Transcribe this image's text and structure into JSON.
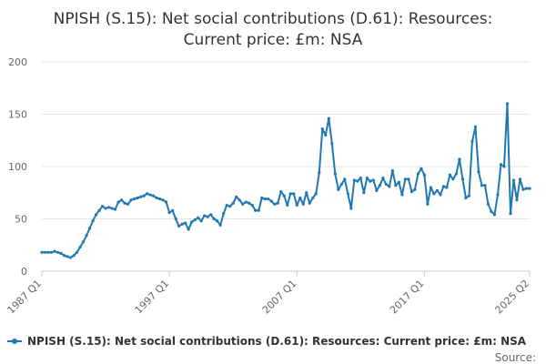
{
  "chart_data": {
    "type": "line",
    "title_line1": "NPISH (S.15): Net social contributions (D.61): Resources:",
    "title_line2": "Current price: £m: NSA",
    "xlabel": "",
    "ylabel": "",
    "ylim": [
      0,
      200
    ],
    "y_ticks": [
      "0",
      "50",
      "100",
      "150",
      "200"
    ],
    "x_tick_labels": [
      "1987 Q1",
      "1997 Q1",
      "2007 Q1",
      "2017 Q1",
      "2025 Q2"
    ],
    "x_tick_positions": [
      1987.0,
      1997.0,
      2007.0,
      2017.0,
      2025.25
    ],
    "xlim": [
      1987.0,
      2025.25
    ],
    "grid": "horizontal",
    "legend_position": "bottom",
    "legend": "NPISH (S.15): Net social contributions (D.61): Resources: Current price: £m: NSA",
    "source_label": "Source:",
    "color": "#1f78b4",
    "series": [
      {
        "name": "NPISH (S.15): Net social contributions (D.61): Resources: Current price: £m: NSA",
        "points": [
          [
            1987.0,
            18
          ],
          [
            1987.25,
            18
          ],
          [
            1987.5,
            18
          ],
          [
            1987.75,
            18
          ],
          [
            1988.0,
            19
          ],
          [
            1988.25,
            18
          ],
          [
            1988.5,
            17
          ],
          [
            1988.75,
            15
          ],
          [
            1989.0,
            14
          ],
          [
            1989.25,
            13
          ],
          [
            1989.5,
            15
          ],
          [
            1989.75,
            18
          ],
          [
            1990.0,
            23
          ],
          [
            1990.25,
            28
          ],
          [
            1990.5,
            34
          ],
          [
            1990.75,
            41
          ],
          [
            1991.0,
            48
          ],
          [
            1991.25,
            54
          ],
          [
            1991.5,
            58
          ],
          [
            1991.75,
            62
          ],
          [
            1992.0,
            60
          ],
          [
            1992.25,
            61
          ],
          [
            1992.5,
            60
          ],
          [
            1992.75,
            59
          ],
          [
            1993.0,
            66
          ],
          [
            1993.25,
            68
          ],
          [
            1993.5,
            65
          ],
          [
            1993.75,
            64
          ],
          [
            1994.0,
            68
          ],
          [
            1994.25,
            69
          ],
          [
            1994.5,
            70
          ],
          [
            1994.75,
            71
          ],
          [
            1995.0,
            72
          ],
          [
            1995.25,
            74
          ],
          [
            1995.5,
            73
          ],
          [
            1995.75,
            72
          ],
          [
            1996.0,
            70
          ],
          [
            1996.25,
            69
          ],
          [
            1996.5,
            68
          ],
          [
            1996.75,
            66
          ],
          [
            1997.0,
            56
          ],
          [
            1997.25,
            58
          ],
          [
            1997.5,
            50
          ],
          [
            1997.75,
            43
          ],
          [
            1998.0,
            45
          ],
          [
            1998.25,
            46
          ],
          [
            1998.5,
            40
          ],
          [
            1998.75,
            47
          ],
          [
            1999.0,
            49
          ],
          [
            1999.25,
            51
          ],
          [
            1999.5,
            48
          ],
          [
            1999.75,
            53
          ],
          [
            2000.0,
            52
          ],
          [
            2000.25,
            54
          ],
          [
            2000.5,
            50
          ],
          [
            2000.75,
            48
          ],
          [
            2001.0,
            44
          ],
          [
            2001.25,
            55
          ],
          [
            2001.5,
            63
          ],
          [
            2001.75,
            62
          ],
          [
            2002.0,
            65
          ],
          [
            2002.25,
            71
          ],
          [
            2002.5,
            68
          ],
          [
            2002.75,
            64
          ],
          [
            2003.0,
            66
          ],
          [
            2003.25,
            65
          ],
          [
            2003.5,
            63
          ],
          [
            2003.75,
            58
          ],
          [
            2004.0,
            58
          ],
          [
            2004.25,
            70
          ],
          [
            2004.5,
            69
          ],
          [
            2004.75,
            69
          ],
          [
            2005.0,
            67
          ],
          [
            2005.25,
            64
          ],
          [
            2005.5,
            65
          ],
          [
            2005.75,
            76
          ],
          [
            2006.0,
            72
          ],
          [
            2006.25,
            63
          ],
          [
            2006.5,
            74
          ],
          [
            2006.75,
            74
          ],
          [
            2007.0,
            63
          ],
          [
            2007.25,
            70
          ],
          [
            2007.5,
            64
          ],
          [
            2007.75,
            75
          ],
          [
            2008.0,
            65
          ],
          [
            2008.25,
            70
          ],
          [
            2008.5,
            74
          ],
          [
            2008.75,
            94
          ],
          [
            2009.0,
            136
          ],
          [
            2009.25,
            130
          ],
          [
            2009.5,
            146
          ],
          [
            2009.75,
            122
          ],
          [
            2010.0,
            93
          ],
          [
            2010.25,
            78
          ],
          [
            2010.5,
            83
          ],
          [
            2010.75,
            88
          ],
          [
            2011.0,
            74
          ],
          [
            2011.25,
            60
          ],
          [
            2011.5,
            87
          ],
          [
            2011.75,
            86
          ],
          [
            2012.0,
            89
          ],
          [
            2012.25,
            75
          ],
          [
            2012.5,
            89
          ],
          [
            2012.75,
            86
          ],
          [
            2013.0,
            87
          ],
          [
            2013.25,
            77
          ],
          [
            2013.5,
            82
          ],
          [
            2013.75,
            89
          ],
          [
            2014.0,
            83
          ],
          [
            2014.25,
            81
          ],
          [
            2014.5,
            96
          ],
          [
            2014.75,
            82
          ],
          [
            2015.0,
            85
          ],
          [
            2015.25,
            73
          ],
          [
            2015.5,
            88
          ],
          [
            2015.75,
            88
          ],
          [
            2016.0,
            76
          ],
          [
            2016.25,
            78
          ],
          [
            2016.5,
            93
          ],
          [
            2016.75,
            98
          ],
          [
            2017.0,
            92
          ],
          [
            2017.25,
            64
          ],
          [
            2017.5,
            80
          ],
          [
            2017.75,
            74
          ],
          [
            2018.0,
            77
          ],
          [
            2018.25,
            73
          ],
          [
            2018.5,
            81
          ],
          [
            2018.75,
            80
          ],
          [
            2019.0,
            92
          ],
          [
            2019.25,
            88
          ],
          [
            2019.5,
            93
          ],
          [
            2019.75,
            107
          ],
          [
            2020.0,
            88
          ],
          [
            2020.25,
            70
          ],
          [
            2020.5,
            72
          ],
          [
            2020.75,
            124
          ],
          [
            2021.0,
            138
          ],
          [
            2021.25,
            95
          ],
          [
            2021.5,
            82
          ],
          [
            2021.75,
            82
          ],
          [
            2022.0,
            64
          ],
          [
            2022.25,
            57
          ],
          [
            2022.5,
            54
          ],
          [
            2022.75,
            73
          ],
          [
            2023.0,
            102
          ],
          [
            2023.25,
            100
          ],
          [
            2023.5,
            160
          ],
          [
            2023.75,
            55
          ],
          [
            2024.0,
            87
          ],
          [
            2024.25,
            68
          ],
          [
            2024.5,
            88
          ],
          [
            2024.75,
            78
          ],
          [
            2025.0,
            79
          ],
          [
            2025.25,
            79
          ]
        ]
      }
    ]
  }
}
